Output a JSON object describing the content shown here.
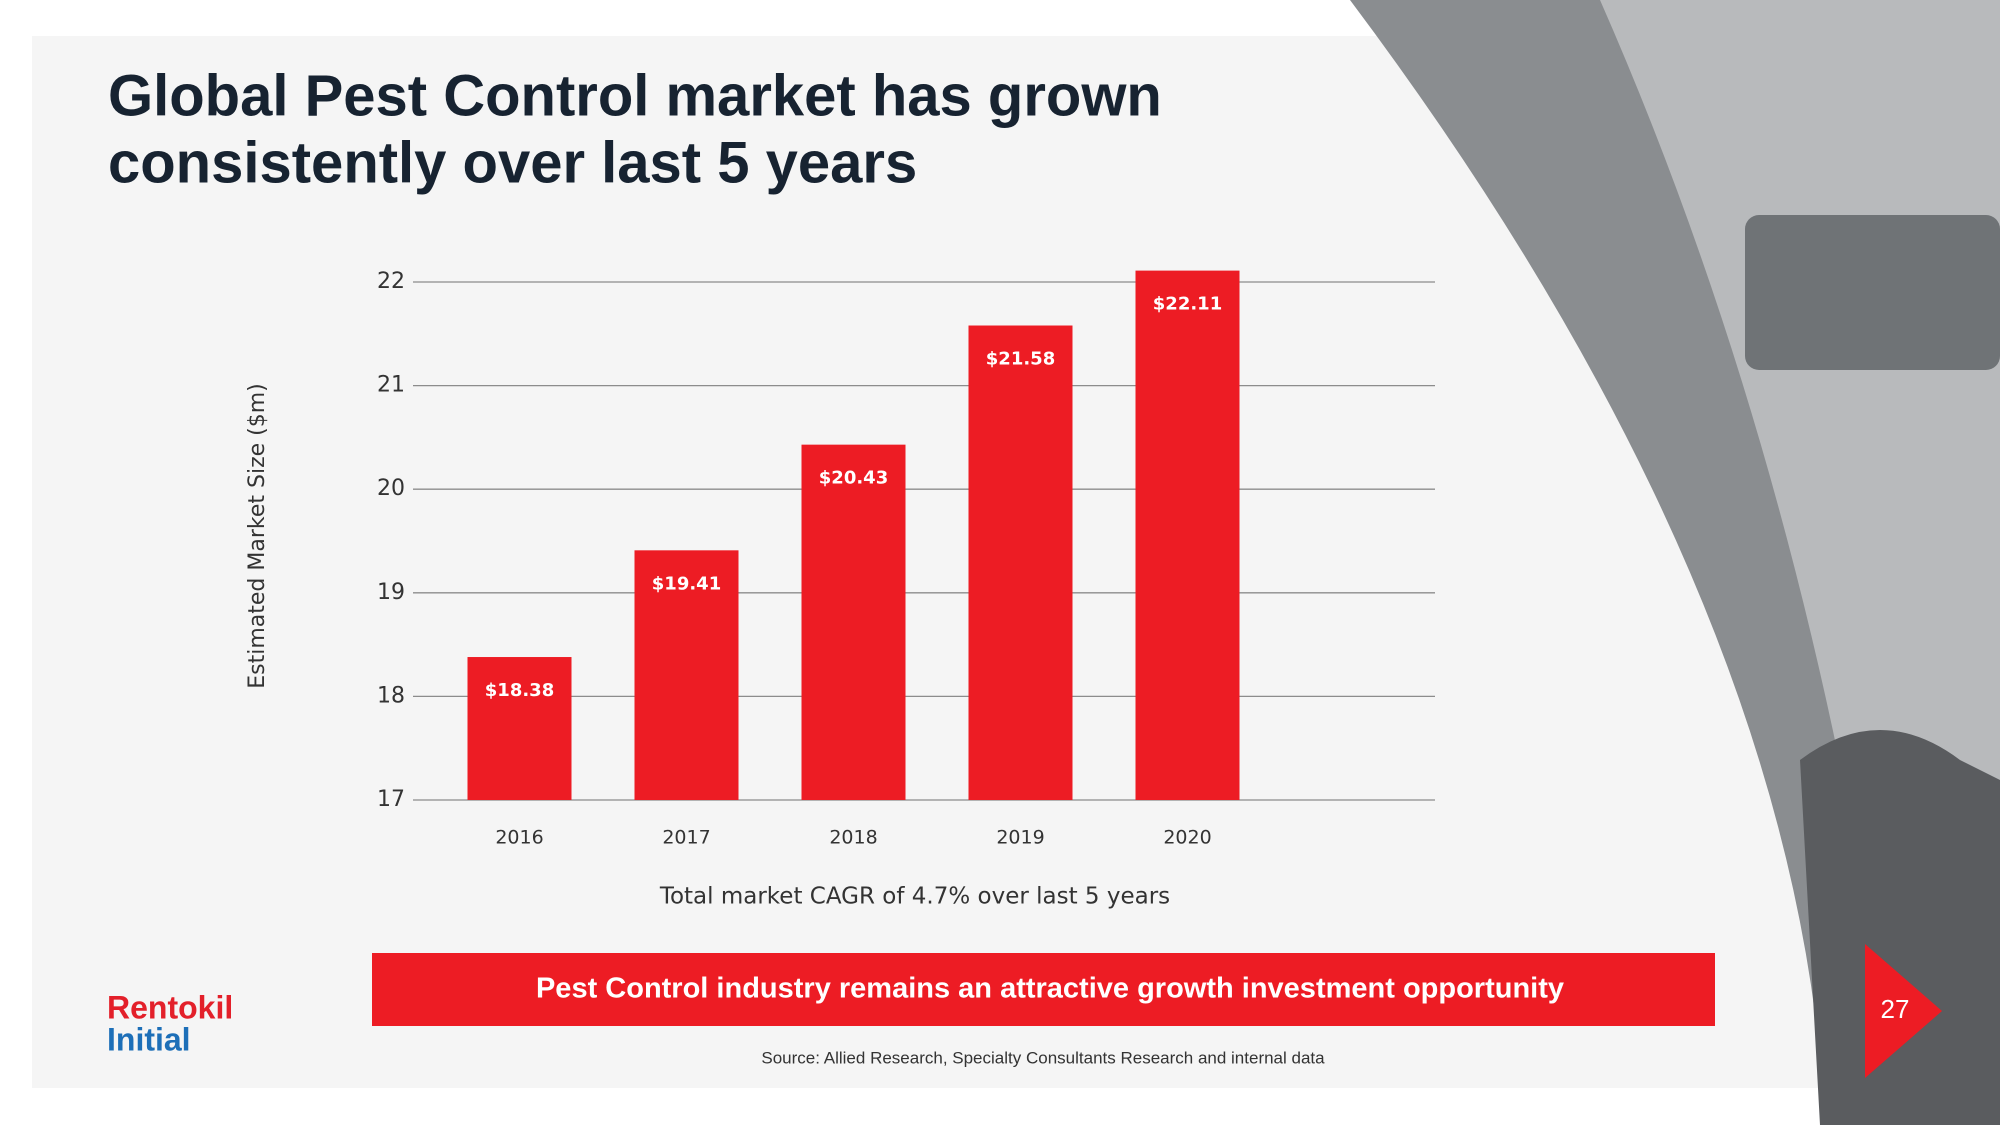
{
  "slide": {
    "title_lines": [
      "Global Pest Control market has grown",
      "consistently over last 5 years"
    ],
    "banner": "Pest Control industry remains an attractive growth investment opportunity",
    "source": "Source: Allied Research, Specialty Consultants Research and internal data",
    "logo": [
      "Rentokil",
      "Initial"
    ],
    "page_number": "27"
  },
  "chart_data": {
    "type": "bar",
    "y_label": "Estimated Market Size ($m)",
    "note": "Total market CAGR of 4.7% over last 5 years",
    "categories": [
      "2016",
      "2017",
      "2018",
      "2019",
      "2020"
    ],
    "values": [
      18.38,
      19.41,
      20.43,
      21.58,
      22.11
    ],
    "value_labels": [
      "$18.38",
      "$19.41",
      "$20.43",
      "$21.58",
      "$22.11"
    ],
    "color": "#ed1c24",
    "ylim": [
      17,
      22
    ],
    "yticks": [
      17,
      18,
      19,
      20,
      21,
      22
    ],
    "grid": true
  }
}
